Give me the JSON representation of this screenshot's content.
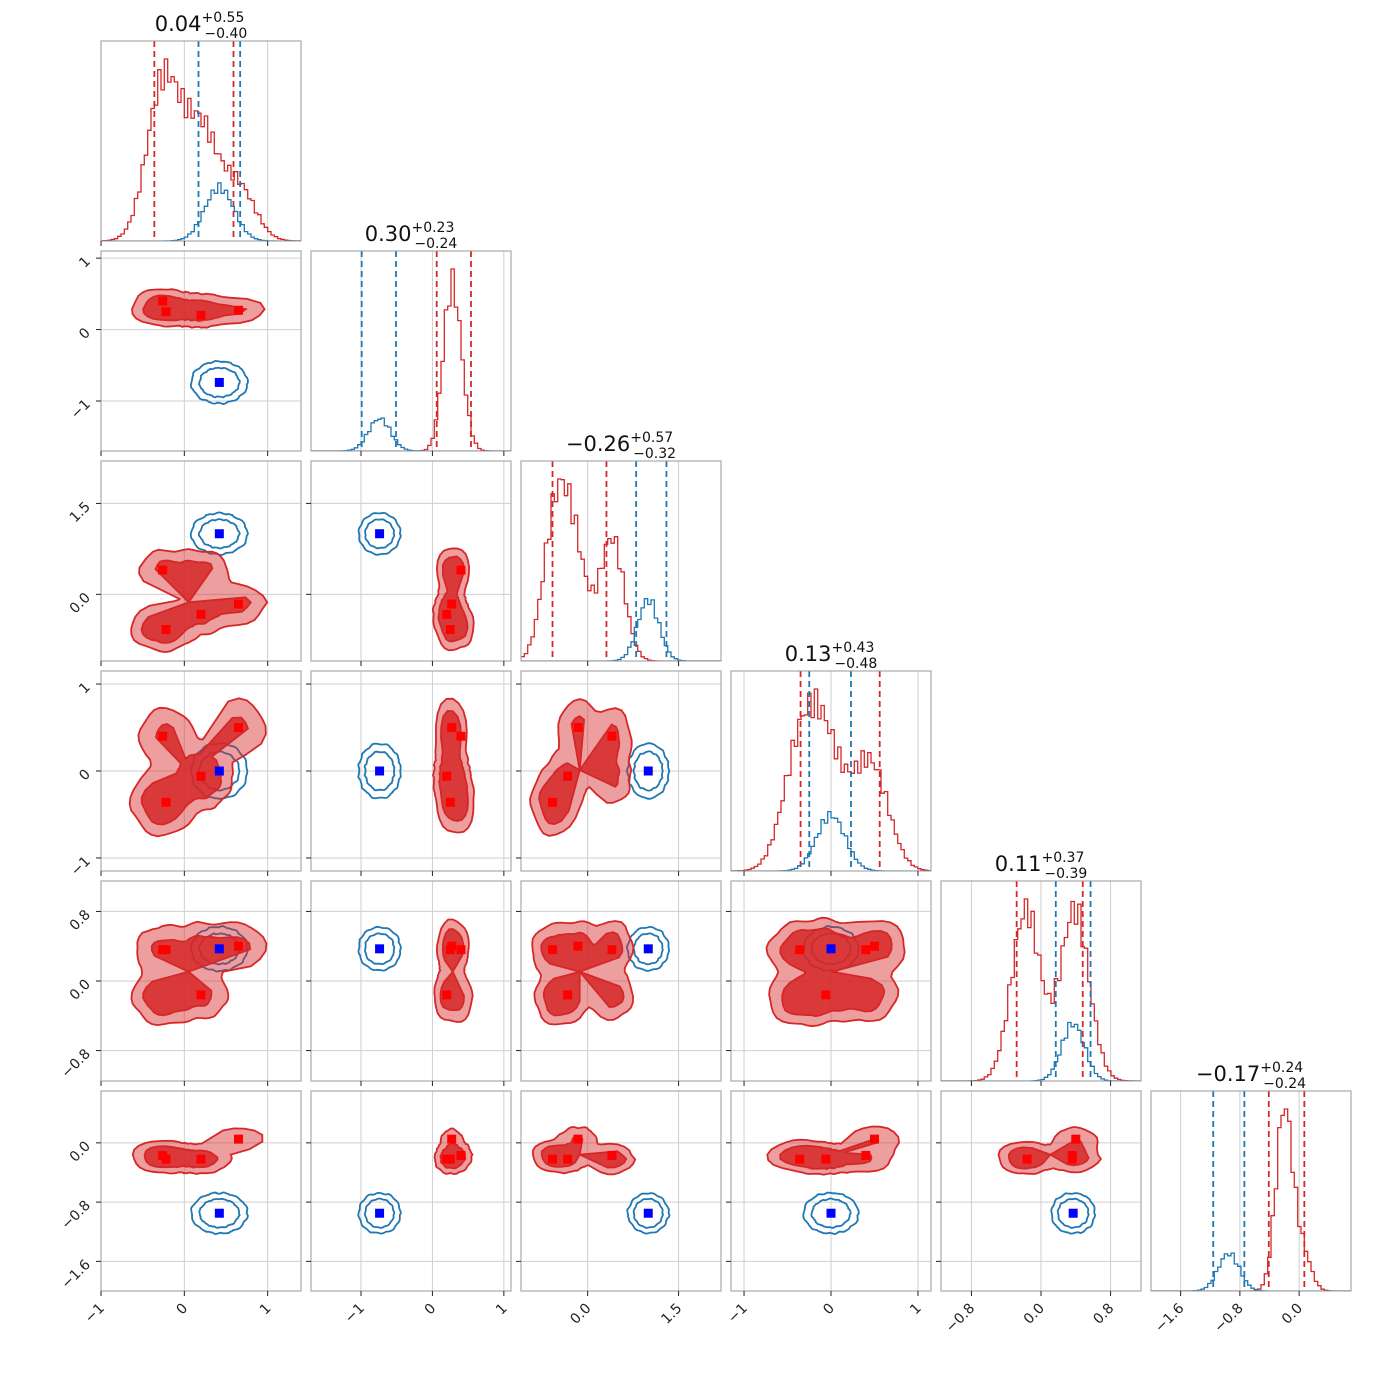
{
  "chart_data": {
    "type": "corner",
    "n_params": 6,
    "colors": {
      "series_a": "#d62728",
      "series_b": "#1f77b4",
      "truth_a": "#ff0000",
      "truth_b": "#0000ff"
    },
    "grid": true,
    "param_ranges": [
      [
        -1.0,
        1.4
      ],
      [
        -1.7,
        1.1
      ],
      [
        -1.1,
        2.2
      ],
      [
        -1.15,
        1.15
      ],
      [
        -1.15,
        1.15
      ],
      [
        -2.0,
        0.7
      ]
    ],
    "param_ticks": [
      {
        "values": [
          -1,
          0,
          1
        ],
        "labels": [
          "−1",
          "0",
          "1"
        ]
      },
      {
        "values": [
          -1,
          0,
          1
        ],
        "labels": [
          "−1",
          "0",
          "1"
        ]
      },
      {
        "values": [
          0.0,
          1.5
        ],
        "labels": [
          "0.0",
          "1.5"
        ]
      },
      {
        "values": [
          -1,
          0,
          1
        ],
        "labels": [
          "−1",
          "0",
          "1"
        ]
      },
      {
        "values": [
          -0.8,
          0.0,
          0.8
        ],
        "labels": [
          "−0.8",
          "0.0",
          "0.8"
        ]
      },
      {
        "values": [
          -1.6,
          -0.8,
          0.0
        ],
        "labels": [
          "−1.6",
          "−0.8",
          "0.0"
        ]
      }
    ],
    "titles": [
      {
        "main": "0.04",
        "sup": "+0.55",
        "sub": "−0.40"
      },
      {
        "main": "0.30",
        "sup": "+0.23",
        "sub": "−0.24"
      },
      {
        "main": "−0.26",
        "sup": "+0.57",
        "sub": "−0.32"
      },
      {
        "main": "0.13",
        "sup": "+0.43",
        "sub": "−0.48"
      },
      {
        "main": "0.11",
        "sup": "+0.37",
        "sub": "−0.39"
      },
      {
        "main": "−0.17",
        "sup": "+0.24",
        "sub": "−0.24"
      }
    ],
    "series": [
      {
        "id": "a",
        "quantiles": [
          [
            -0.36,
            0.59
          ],
          [
            0.06,
            0.54
          ],
          [
            -0.58,
            0.31
          ],
          [
            -0.35,
            0.56
          ],
          [
            -0.28,
            0.48
          ],
          [
            -0.41,
            0.07
          ]
        ],
        "modes": [
          [
            -0.26,
            0.26,
            -0.58,
            -0.36,
            0.36,
            -0.17
          ],
          [
            -0.22,
            0.25,
            0.4,
            0.4,
            -0.16,
            -0.22
          ],
          [
            0.2,
            0.2,
            -0.33,
            -0.06,
            -0.16,
            -0.22
          ],
          [
            0.65,
            0.27,
            -0.16,
            0.5,
            0.4,
            0.05
          ],
          [
            0.2,
            0.33,
            0.4,
            -0.06,
            0.4,
            -0.22
          ],
          [
            -0.26,
            0.4,
            -0.52,
            -0.36,
            -0.2,
            -0.17
          ]
        ],
        "spread": [
          0.18,
          0.1,
          0.18,
          0.18,
          0.15,
          0.1
        ]
      },
      {
        "id": "b",
        "quantiles": [
          [
            0.17,
            0.67
          ],
          [
            -0.99,
            -0.51
          ],
          [
            0.8,
            1.3
          ],
          [
            -0.25,
            0.23
          ],
          [
            0.17,
            0.57
          ],
          [
            -1.16,
            -0.74
          ]
        ],
        "modes": [
          [
            0.42,
            -0.74,
            1.0,
            0.0,
            0.37,
            -0.95
          ]
        ],
        "spread": [
          0.16,
          0.14,
          0.16,
          0.15,
          0.12,
          0.13
        ]
      }
    ],
    "truth_a": [
      [
        -0.26,
        0.4,
        0.4,
        0.4,
        0.36,
        -0.17
      ],
      [
        -0.22,
        0.25,
        -0.58,
        -0.36,
        0.36,
        -0.22
      ],
      [
        0.2,
        0.2,
        -0.33,
        -0.06,
        -0.16,
        -0.22
      ],
      [
        0.65,
        0.27,
        -0.16,
        0.5,
        0.4,
        0.05
      ]
    ],
    "truth_b": [
      0.42,
      -0.74,
      1.0,
      0.0,
      0.37,
      -0.95
    ]
  }
}
